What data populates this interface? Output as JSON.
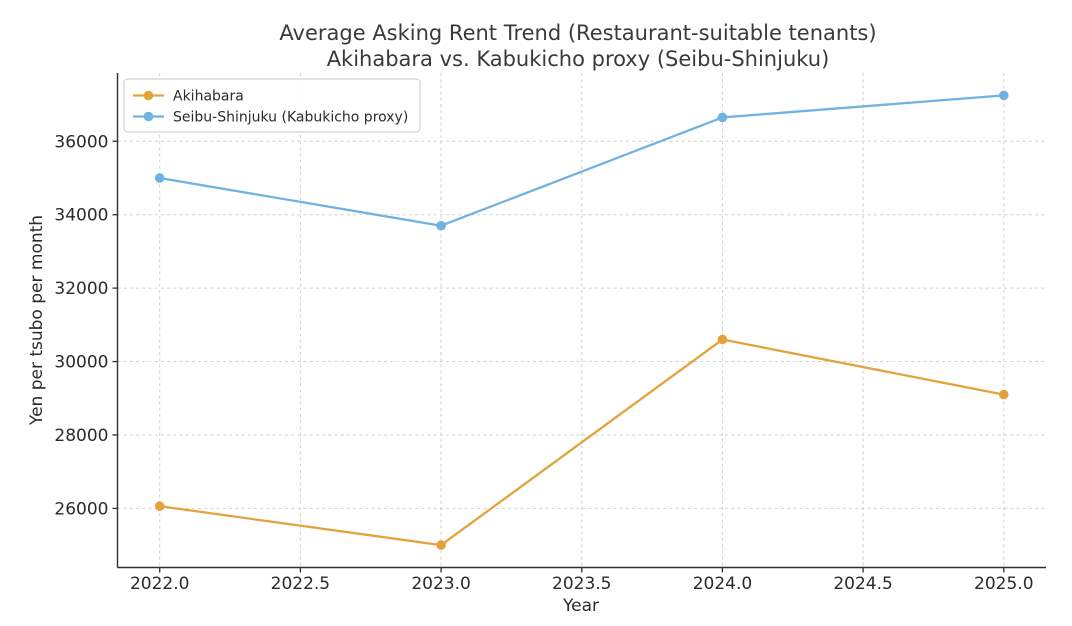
{
  "chart_data": {
    "type": "line",
    "title": "Average Asking Rent Trend (Restaurant-suitable tenants)",
    "subtitle": "Akihabara vs. Kabukicho proxy (Seibu-Shinjuku)",
    "xlabel": "Year",
    "ylabel": "Yen per tsubo per month",
    "x": [
      2022,
      2023,
      2024,
      2025
    ],
    "series": [
      {
        "name": "Akihabara",
        "color": "#e3a33c",
        "values": [
          26060,
          25000,
          30600,
          29100
        ]
      },
      {
        "name": "Seibu-Shinjuku (Kabukicho proxy)",
        "color": "#70b2e2",
        "values": [
          35000,
          33700,
          36650,
          37250
        ]
      }
    ],
    "xlim": [
      2021.85,
      2025.15
    ],
    "ylim": [
      24390,
      37860
    ],
    "xticks": {
      "values": [
        2022.0,
        2022.5,
        2023.0,
        2023.5,
        2024.0,
        2024.5,
        2025.0
      ],
      "labels": [
        "2022.0",
        "2022.5",
        "2023.0",
        "2023.5",
        "2024.0",
        "2024.5",
        "2025.0"
      ]
    },
    "yticks": {
      "values": [
        26000,
        28000,
        30000,
        32000,
        34000,
        36000
      ],
      "labels": [
        "26000",
        "28000",
        "30000",
        "32000",
        "34000",
        "36000"
      ]
    },
    "grid": true,
    "grid_color": "#d0d0d0",
    "spine_color": "#2f2f2f",
    "tick_text_color": "#2b2b2b",
    "legend_position": "upper left",
    "legend_border_color": "#c9c9c9",
    "marker": "o"
  }
}
